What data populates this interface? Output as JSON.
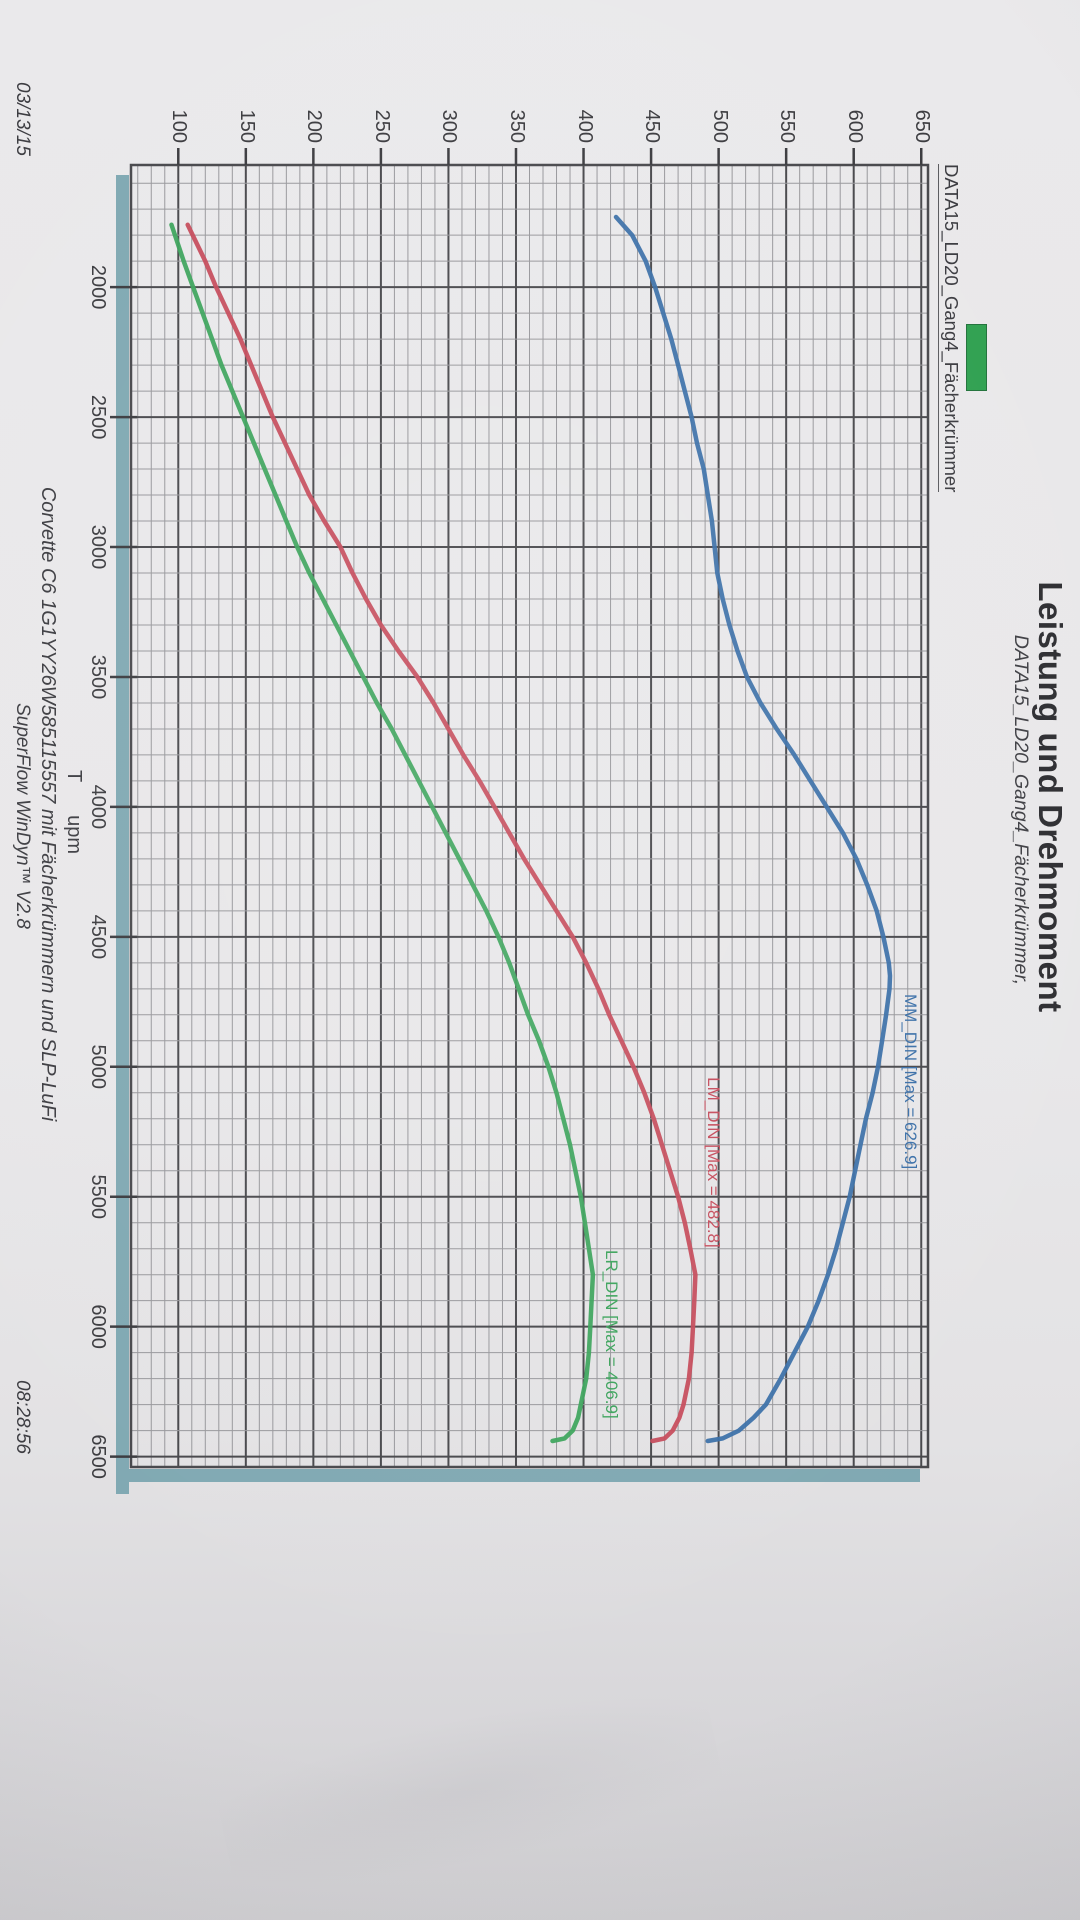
{
  "header": {
    "title": "Leistung und Drehmoment",
    "subtitle": "DATA15_LD20_Gang4_Fächerkrümmer,"
  },
  "legend": {
    "label": "DATA15_LD20_Gang4_Fächerkrümmer",
    "swatch_color": "#2ea04f"
  },
  "footer": {
    "vehicle_line": "Corvette C6 1G1YY26W585115557 mit Fächerkrümmern und SLP-LuFi",
    "software_line": "SuperFlow WinDyn™ V2.8",
    "date": "03/13/15",
    "time": "08:28:56"
  },
  "chart_data": {
    "type": "line",
    "title": "Leistung und Drehmoment",
    "subtitle": "DATA15_LD20_Gang4_Fächerkrümmer,",
    "xlabel": "T      upm",
    "ylabel": "",
    "xlim": [
      1530,
      6540
    ],
    "ylim": [
      65,
      655
    ],
    "x_ticks": [
      2000,
      2500,
      3000,
      3500,
      4000,
      4500,
      5000,
      5500,
      6000,
      6500
    ],
    "y_ticks": [
      100,
      150,
      200,
      250,
      300,
      350,
      400,
      450,
      500,
      550,
      600,
      650
    ],
    "grid": {
      "x_minor_step": 100,
      "x_major_step": 500,
      "y_minor_step": 10,
      "y_major_step": 50,
      "minor_color": "#97979b",
      "major_color": "#47474b",
      "shadow_color": "#7fa8b2"
    },
    "legend_position": "top-left",
    "series": [
      {
        "name": "MM_DIN",
        "label": "MM_DIN [Max = 626.9]",
        "color": "#3a6fa8",
        "max": 626.9,
        "label_anchor": {
          "rpm": 4720,
          "value": 649
        },
        "points": [
          [
            1730,
            424
          ],
          [
            1800,
            436
          ],
          [
            1900,
            446
          ],
          [
            2000,
            453
          ],
          [
            2100,
            459
          ],
          [
            2200,
            465
          ],
          [
            2300,
            470
          ],
          [
            2400,
            475
          ],
          [
            2500,
            480
          ],
          [
            2600,
            484
          ],
          [
            2700,
            489
          ],
          [
            2800,
            492
          ],
          [
            2900,
            495
          ],
          [
            3000,
            497
          ],
          [
            3100,
            499
          ],
          [
            3200,
            503
          ],
          [
            3300,
            508
          ],
          [
            3400,
            514
          ],
          [
            3500,
            521
          ],
          [
            3600,
            531
          ],
          [
            3700,
            543
          ],
          [
            3800,
            556
          ],
          [
            3900,
            568
          ],
          [
            4000,
            580
          ],
          [
            4100,
            592
          ],
          [
            4200,
            602
          ],
          [
            4300,
            610
          ],
          [
            4400,
            617
          ],
          [
            4500,
            622
          ],
          [
            4600,
            626
          ],
          [
            4650,
            626.9
          ],
          [
            4700,
            626.5
          ],
          [
            4800,
            624
          ],
          [
            4900,
            621
          ],
          [
            5000,
            618
          ],
          [
            5100,
            614
          ],
          [
            5200,
            609
          ],
          [
            5300,
            605
          ],
          [
            5400,
            601
          ],
          [
            5500,
            597
          ],
          [
            5600,
            592
          ],
          [
            5700,
            587
          ],
          [
            5800,
            581
          ],
          [
            5900,
            574
          ],
          [
            6000,
            566
          ],
          [
            6100,
            556
          ],
          [
            6200,
            546
          ],
          [
            6300,
            535
          ],
          [
            6350,
            526
          ],
          [
            6400,
            515
          ],
          [
            6430,
            503
          ],
          [
            6440,
            492
          ]
        ]
      },
      {
        "name": "LM_DIN",
        "label": "LM_DIN [Max = 482.8]",
        "color": "#c54a5a",
        "max": 482.8,
        "label_anchor": {
          "rpm": 5040,
          "value": 503
        },
        "points": [
          [
            1760,
            107
          ],
          [
            1900,
            120
          ],
          [
            2000,
            128
          ],
          [
            2100,
            137
          ],
          [
            2200,
            146
          ],
          [
            2300,
            154
          ],
          [
            2400,
            162
          ],
          [
            2500,
            170
          ],
          [
            2600,
            179
          ],
          [
            2700,
            188
          ],
          [
            2800,
            197
          ],
          [
            2900,
            208
          ],
          [
            3000,
            220
          ],
          [
            3100,
            229
          ],
          [
            3200,
            239
          ],
          [
            3300,
            250
          ],
          [
            3400,
            263
          ],
          [
            3500,
            277
          ],
          [
            3600,
            289
          ],
          [
            3700,
            300
          ],
          [
            3800,
            311
          ],
          [
            3900,
            323
          ],
          [
            4000,
            334
          ],
          [
            4100,
            345
          ],
          [
            4200,
            356
          ],
          [
            4300,
            368
          ],
          [
            4400,
            380
          ],
          [
            4500,
            392
          ],
          [
            4600,
            402
          ],
          [
            4700,
            411
          ],
          [
            4800,
            419
          ],
          [
            4900,
            428
          ],
          [
            5000,
            437
          ],
          [
            5100,
            445
          ],
          [
            5200,
            452
          ],
          [
            5300,
            458
          ],
          [
            5400,
            464
          ],
          [
            5500,
            470
          ],
          [
            5600,
            475
          ],
          [
            5700,
            479
          ],
          [
            5800,
            482.8
          ],
          [
            5900,
            482
          ],
          [
            6000,
            481
          ],
          [
            6100,
            480
          ],
          [
            6200,
            478
          ],
          [
            6300,
            474
          ],
          [
            6350,
            471
          ],
          [
            6400,
            466
          ],
          [
            6430,
            460
          ],
          [
            6440,
            451
          ]
        ]
      },
      {
        "name": "LR_DIN",
        "label": "LR_DIN [Max = 406.9]",
        "color": "#3ba35b",
        "max": 406.9,
        "label_anchor": {
          "rpm": 5705,
          "value": 428
        },
        "points": [
          [
            1760,
            95
          ],
          [
            1900,
            104
          ],
          [
            2000,
            111
          ],
          [
            2100,
            118
          ],
          [
            2200,
            125
          ],
          [
            2300,
            132
          ],
          [
            2400,
            140
          ],
          [
            2500,
            148
          ],
          [
            2600,
            156
          ],
          [
            2700,
            164
          ],
          [
            2800,
            172
          ],
          [
            2900,
            180
          ],
          [
            3000,
            188
          ],
          [
            3100,
            197
          ],
          [
            3200,
            207
          ],
          [
            3300,
            217
          ],
          [
            3400,
            227
          ],
          [
            3500,
            237
          ],
          [
            3600,
            247
          ],
          [
            3700,
            258
          ],
          [
            3800,
            268
          ],
          [
            3900,
            278
          ],
          [
            4000,
            288
          ],
          [
            4100,
            298
          ],
          [
            4200,
            308
          ],
          [
            4300,
            318
          ],
          [
            4400,
            328
          ],
          [
            4500,
            337
          ],
          [
            4600,
            345
          ],
          [
            4700,
            352
          ],
          [
            4800,
            359
          ],
          [
            4900,
            367
          ],
          [
            5000,
            374
          ],
          [
            5100,
            380
          ],
          [
            5200,
            385
          ],
          [
            5300,
            390
          ],
          [
            5400,
            394
          ],
          [
            5500,
            398
          ],
          [
            5600,
            401
          ],
          [
            5700,
            404
          ],
          [
            5800,
            406.9
          ],
          [
            5900,
            406
          ],
          [
            6000,
            405
          ],
          [
            6100,
            404
          ],
          [
            6200,
            402
          ],
          [
            6300,
            398
          ],
          [
            6350,
            396
          ],
          [
            6400,
            392
          ],
          [
            6430,
            386
          ],
          [
            6440,
            377
          ]
        ]
      }
    ]
  }
}
